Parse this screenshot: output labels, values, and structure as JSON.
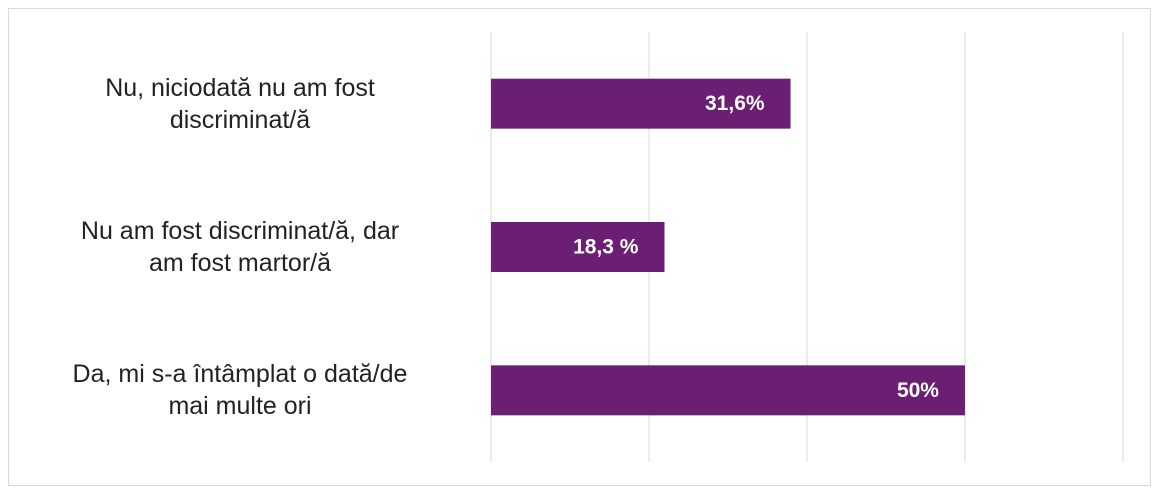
{
  "chart_data": {
    "type": "bar",
    "orientation": "horizontal",
    "categories": [
      "Nu, niciodată nu am fost\ndiscriminat/ă",
      "Nu am fost discriminat/ă, dar\nam fost martor/ă",
      "Da, mi s-a întâmplat o dată/de\nmai multe ori"
    ],
    "values": [
      31.6,
      18.3,
      50
    ],
    "value_labels": [
      "31,6%",
      "18,3 %",
      "50%"
    ],
    "color": "#6b1f73",
    "xlim": [
      0,
      66.67
    ],
    "xticks": [
      0,
      16.67,
      33.33,
      50,
      66.67
    ],
    "grid": true
  }
}
